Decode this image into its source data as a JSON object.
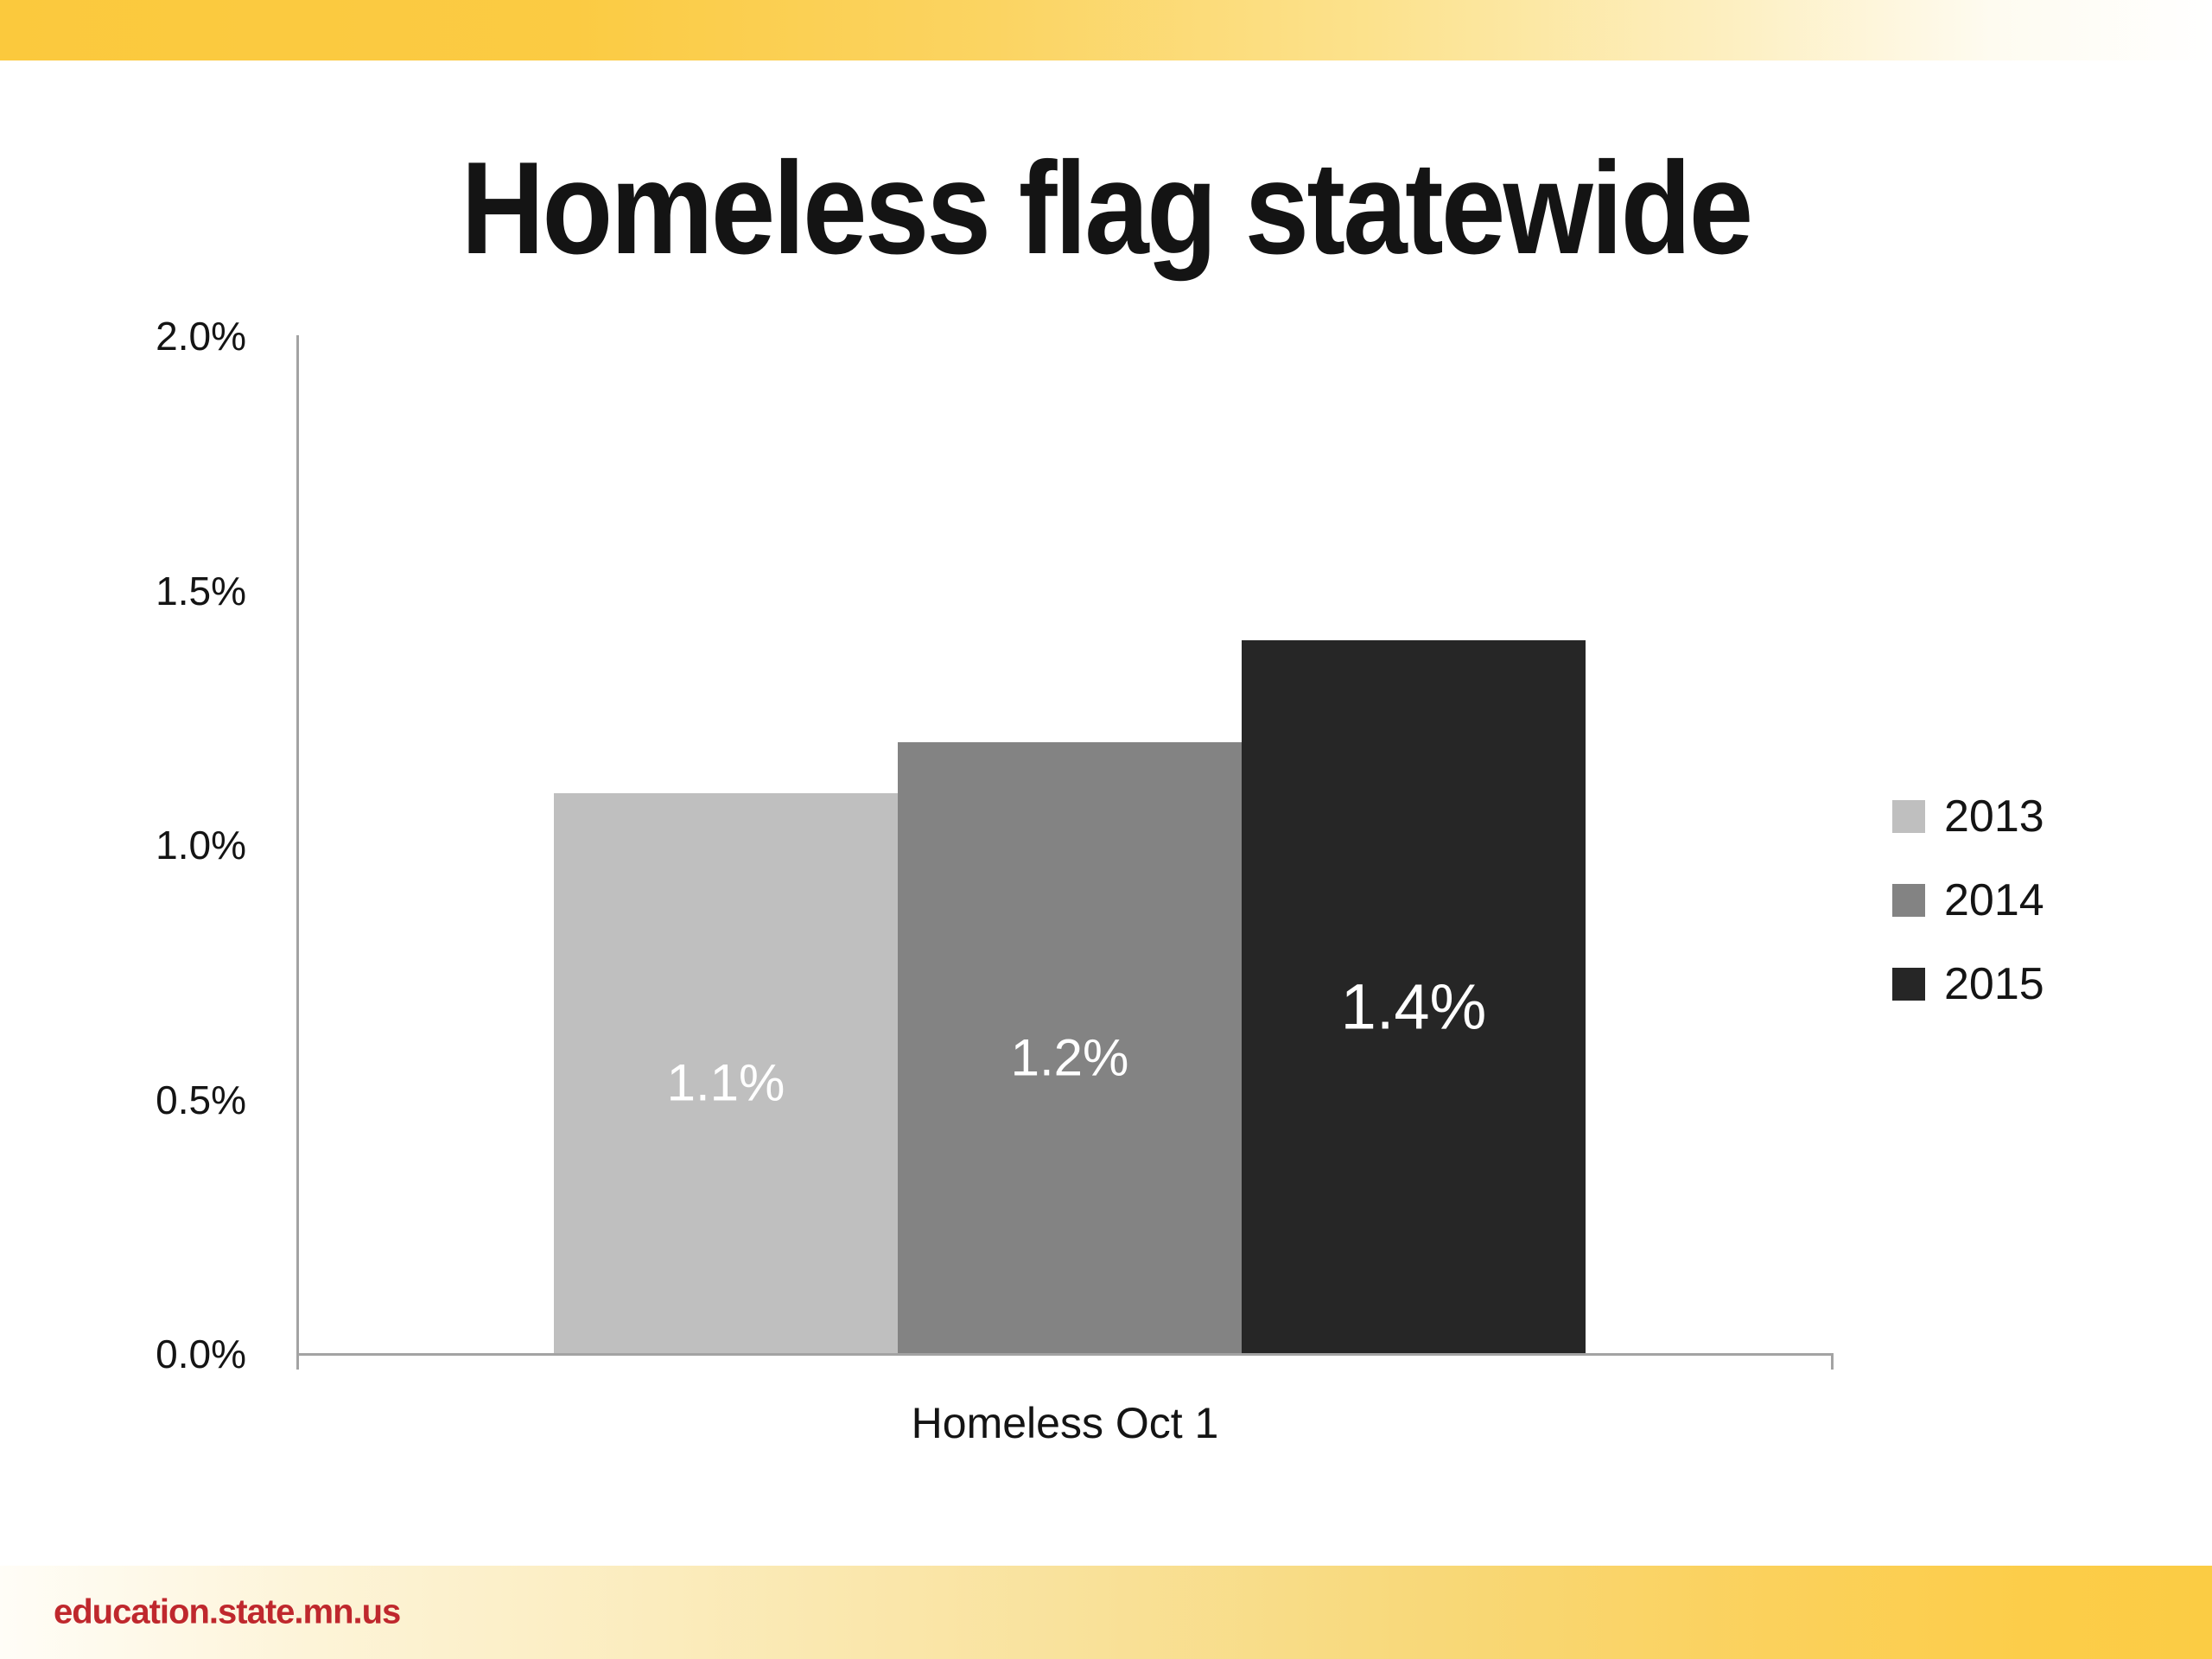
{
  "slide": {
    "title": "Homeless flag statewide",
    "footer_url": "education.state.mn.us"
  },
  "chart_data": {
    "type": "bar",
    "title": "Homeless flag statewide",
    "categories": [
      "Homeless Oct 1"
    ],
    "xlabel": "Homeless Oct 1",
    "ylabel": "",
    "ylim": [
      0,
      2.0
    ],
    "grid": false,
    "legend_position": "right",
    "y_ticks": [
      {
        "value": 2.0,
        "label": "2.0%"
      },
      {
        "value": 1.5,
        "label": "1.5%"
      },
      {
        "value": 1.0,
        "label": "1.0%"
      },
      {
        "value": 0.5,
        "label": "0.5%"
      },
      {
        "value": 0.0,
        "label": "0.0%"
      }
    ],
    "series": [
      {
        "name": "2013",
        "values": [
          1.1
        ],
        "data_label": "1.1%",
        "color": "#bfbfbf",
        "label_color": "#ffffff"
      },
      {
        "name": "2014",
        "values": [
          1.2
        ],
        "data_label": "1.2%",
        "color": "#838383",
        "label_color": "#ffffff"
      },
      {
        "name": "2015",
        "values": [
          1.4
        ],
        "data_label": "1.4%",
        "color": "#262626",
        "label_color": "#ffffff"
      }
    ]
  },
  "theme": {
    "accent_gold": "#fbca3e",
    "footer_red": "#bf282d",
    "axis_gray": "#a3a3a3"
  }
}
